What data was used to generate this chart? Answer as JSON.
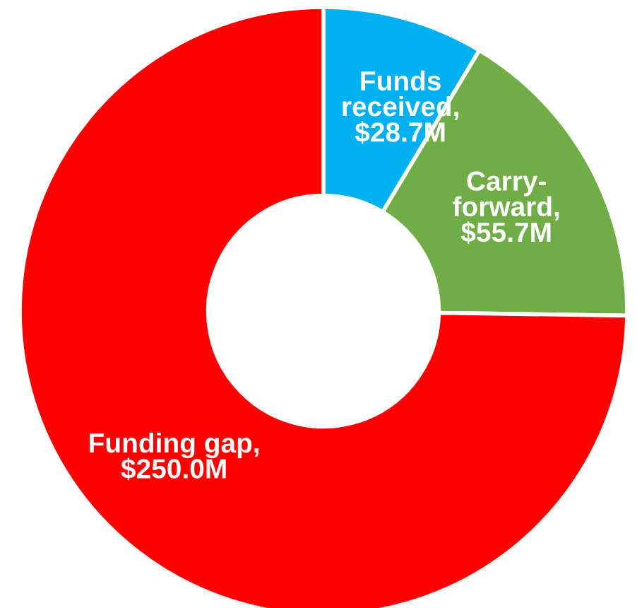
{
  "chart_data": {
    "type": "donut",
    "categories": [
      null,
      null,
      null
    ],
    "values": [
      28.7,
      55.7,
      250.0
    ],
    "value_labels": [
      "Funds received, $28.7M",
      "Carry-forward, $55.7M",
      "Funding gap, $250.0M"
    ],
    "colors": [
      "#00b0f0",
      "#70ad47",
      "#ff0000"
    ],
    "legend": false
  }
}
